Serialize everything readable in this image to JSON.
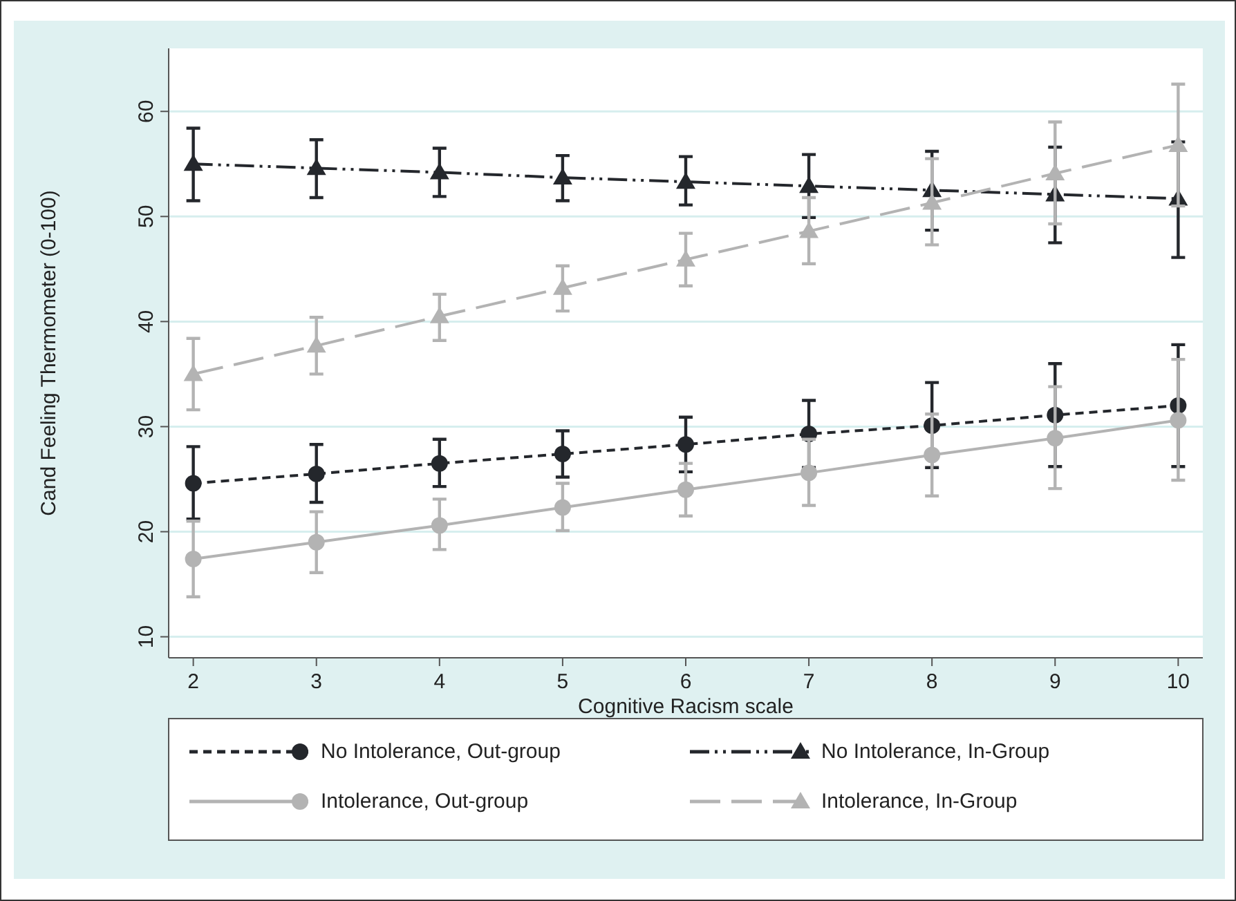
{
  "chart_data": {
    "type": "line",
    "xlabel": "Cognitive Racism scale",
    "ylabel": "Cand Feeling Thermometer (0-100)",
    "x": [
      2,
      3,
      4,
      5,
      6,
      7,
      8,
      9,
      10
    ],
    "xlim": [
      1.8,
      10.2
    ],
    "xticks": [
      2,
      3,
      4,
      5,
      6,
      7,
      8,
      9,
      10
    ],
    "ylim": [
      8,
      66
    ],
    "yticks": [
      10,
      20,
      30,
      40,
      50,
      60
    ],
    "grid": "y",
    "legend": "bottom",
    "series": [
      {
        "name": "No Intolerance, Out-group",
        "color": "#24272c",
        "marker": "circle",
        "line_style": "dashed",
        "values": [
          24.6,
          25.5,
          26.5,
          27.4,
          28.3,
          29.3,
          30.1,
          31.1,
          32.0
        ],
        "errors": [
          [
            21.2,
            28.1
          ],
          [
            22.8,
            28.3
          ],
          [
            24.3,
            28.8
          ],
          [
            25.2,
            29.6
          ],
          [
            25.7,
            30.9
          ],
          [
            26.1,
            32.5
          ],
          [
            26.1,
            34.2
          ],
          [
            26.2,
            36.0
          ],
          [
            26.2,
            37.8
          ]
        ]
      },
      {
        "name": "No Intolerance, In-Group",
        "color": "#24272c",
        "marker": "triangle",
        "line_style": "dashdotdot",
        "values": [
          55.0,
          54.6,
          54.2,
          53.7,
          53.3,
          52.9,
          52.5,
          52.1,
          51.7
        ],
        "errors": [
          [
            51.5,
            58.4
          ],
          [
            51.8,
            57.3
          ],
          [
            51.9,
            56.5
          ],
          [
            51.5,
            55.8
          ],
          [
            51.1,
            55.7
          ],
          [
            49.9,
            55.9
          ],
          [
            48.7,
            56.2
          ],
          [
            47.5,
            56.6
          ],
          [
            46.1,
            57.1
          ]
        ]
      },
      {
        "name": "Intolerance, Out-group",
        "color": "#b3b3b3",
        "marker": "circle",
        "line_style": "solid",
        "values": [
          17.4,
          19.0,
          20.6,
          22.3,
          24.0,
          25.6,
          27.3,
          28.9,
          30.6
        ],
        "errors": [
          [
            13.8,
            21.0
          ],
          [
            16.1,
            21.9
          ],
          [
            18.3,
            23.1
          ],
          [
            20.1,
            24.6
          ],
          [
            21.5,
            26.5
          ],
          [
            22.5,
            28.8
          ],
          [
            23.4,
            31.2
          ],
          [
            24.1,
            33.8
          ],
          [
            24.9,
            36.4
          ]
        ]
      },
      {
        "name": "Intolerance, In-Group",
        "color": "#b3b3b3",
        "marker": "triangle",
        "line_style": "longdash",
        "values": [
          35.0,
          37.7,
          40.5,
          43.2,
          45.9,
          48.6,
          51.3,
          54.1,
          56.8
        ],
        "errors": [
          [
            31.6,
            38.4
          ],
          [
            35.0,
            40.4
          ],
          [
            38.2,
            42.6
          ],
          [
            41.0,
            45.3
          ],
          [
            43.4,
            48.4
          ],
          [
            45.5,
            51.8
          ],
          [
            47.3,
            55.5
          ],
          [
            49.3,
            59.0
          ],
          [
            51.0,
            62.6
          ]
        ]
      }
    ]
  }
}
